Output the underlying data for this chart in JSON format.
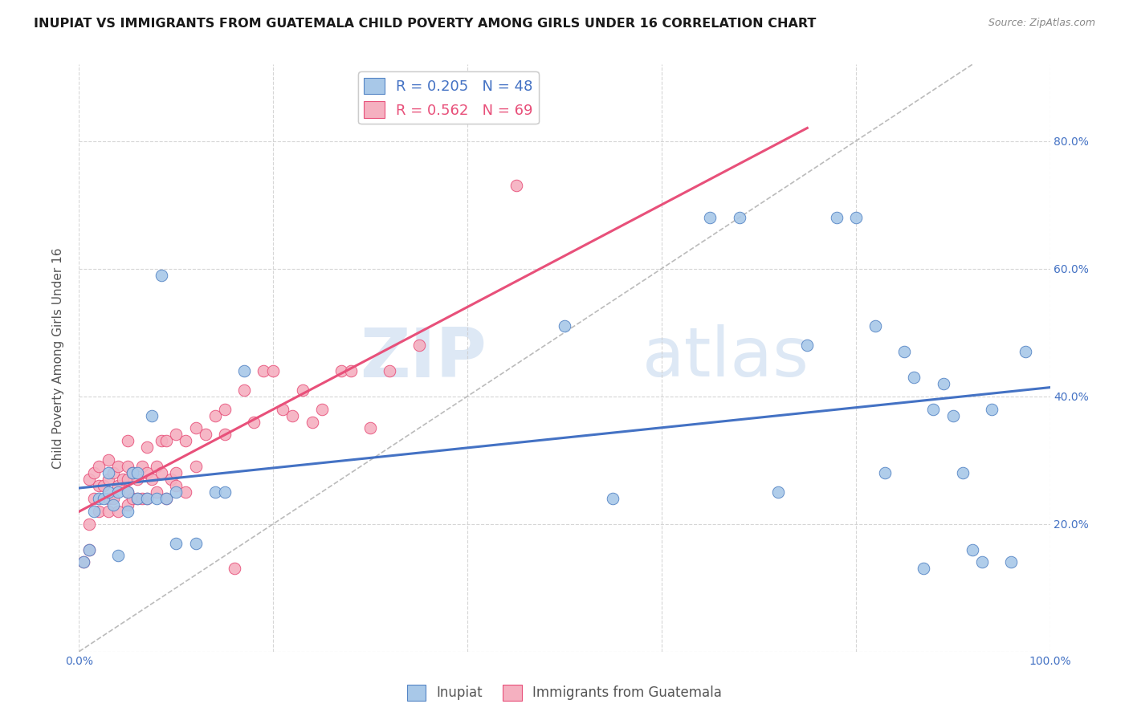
{
  "title": "INUPIAT VS IMMIGRANTS FROM GUATEMALA CHILD POVERTY AMONG GIRLS UNDER 16 CORRELATION CHART",
  "source": "Source: ZipAtlas.com",
  "ylabel": "Child Poverty Among Girls Under 16",
  "xlim": [
    0,
    1.0
  ],
  "ylim": [
    0,
    0.92
  ],
  "xticks": [
    0.0,
    0.2,
    0.4,
    0.6,
    0.8,
    1.0
  ],
  "xticklabels": [
    "0.0%",
    "",
    "",
    "",
    "",
    "100.0%"
  ],
  "right_yticklabels": [
    "20.0%",
    "40.0%",
    "60.0%",
    "80.0%"
  ],
  "right_yticks": [
    0.2,
    0.4,
    0.6,
    0.8
  ],
  "inupiat_color": "#a8c8e8",
  "guatemala_color": "#f5b0c0",
  "inupiat_edge_color": "#5585c5",
  "guatemala_edge_color": "#e8507a",
  "inupiat_line_color": "#4472c4",
  "guatemala_line_color": "#e8507a",
  "trendline_color": "#bbbbbb",
  "legend_label_1": "R = 0.205   N = 48",
  "legend_label_2": "R = 0.562   N = 69",
  "inupiat_x": [
    0.005,
    0.01,
    0.015,
    0.02,
    0.025,
    0.03,
    0.03,
    0.035,
    0.04,
    0.04,
    0.05,
    0.05,
    0.055,
    0.06,
    0.06,
    0.07,
    0.075,
    0.08,
    0.085,
    0.09,
    0.1,
    0.1,
    0.12,
    0.14,
    0.15,
    0.17,
    0.5,
    0.55,
    0.65,
    0.68,
    0.72,
    0.75,
    0.78,
    0.8,
    0.82,
    0.83,
    0.85,
    0.86,
    0.87,
    0.88,
    0.89,
    0.9,
    0.91,
    0.92,
    0.93,
    0.94,
    0.96,
    0.975
  ],
  "inupiat_y": [
    0.14,
    0.16,
    0.22,
    0.24,
    0.24,
    0.25,
    0.28,
    0.23,
    0.15,
    0.25,
    0.22,
    0.25,
    0.28,
    0.24,
    0.28,
    0.24,
    0.37,
    0.24,
    0.59,
    0.24,
    0.25,
    0.17,
    0.17,
    0.25,
    0.25,
    0.44,
    0.51,
    0.24,
    0.68,
    0.68,
    0.25,
    0.48,
    0.68,
    0.68,
    0.51,
    0.28,
    0.47,
    0.43,
    0.13,
    0.38,
    0.42,
    0.37,
    0.28,
    0.16,
    0.14,
    0.38,
    0.14,
    0.47
  ],
  "guatemala_x": [
    0.005,
    0.01,
    0.01,
    0.01,
    0.015,
    0.015,
    0.02,
    0.02,
    0.02,
    0.025,
    0.03,
    0.03,
    0.03,
    0.03,
    0.035,
    0.035,
    0.04,
    0.04,
    0.04,
    0.045,
    0.05,
    0.05,
    0.05,
    0.05,
    0.05,
    0.055,
    0.055,
    0.06,
    0.06,
    0.065,
    0.065,
    0.07,
    0.07,
    0.07,
    0.075,
    0.08,
    0.08,
    0.085,
    0.085,
    0.09,
    0.09,
    0.095,
    0.1,
    0.1,
    0.1,
    0.11,
    0.11,
    0.12,
    0.12,
    0.13,
    0.14,
    0.15,
    0.15,
    0.16,
    0.17,
    0.18,
    0.19,
    0.2,
    0.21,
    0.22,
    0.23,
    0.24,
    0.25,
    0.27,
    0.28,
    0.3,
    0.32,
    0.35,
    0.45
  ],
  "guatemala_y": [
    0.14,
    0.16,
    0.2,
    0.27,
    0.24,
    0.28,
    0.22,
    0.26,
    0.29,
    0.26,
    0.22,
    0.24,
    0.27,
    0.3,
    0.24,
    0.28,
    0.22,
    0.26,
    0.29,
    0.27,
    0.23,
    0.25,
    0.27,
    0.29,
    0.33,
    0.24,
    0.28,
    0.24,
    0.27,
    0.24,
    0.29,
    0.24,
    0.28,
    0.32,
    0.27,
    0.25,
    0.29,
    0.28,
    0.33,
    0.24,
    0.33,
    0.27,
    0.26,
    0.28,
    0.34,
    0.25,
    0.33,
    0.29,
    0.35,
    0.34,
    0.37,
    0.34,
    0.38,
    0.13,
    0.41,
    0.36,
    0.44,
    0.44,
    0.38,
    0.37,
    0.41,
    0.36,
    0.38,
    0.44,
    0.44,
    0.35,
    0.44,
    0.48,
    0.73
  ],
  "watermark_zip": "ZIP",
  "watermark_atlas": "atlas",
  "background_color": "#ffffff",
  "grid_color": "#cccccc",
  "tick_color": "#4472c4",
  "title_fontsize": 11.5,
  "axis_fontsize": 11,
  "tick_fontsize": 10
}
